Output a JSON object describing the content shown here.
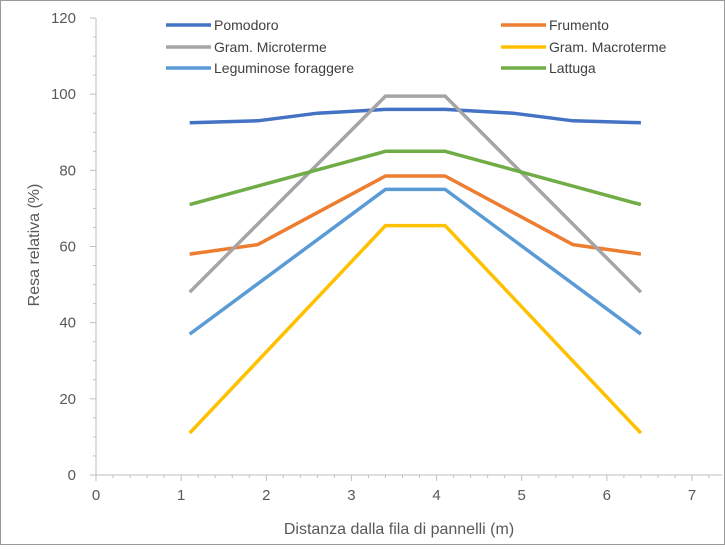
{
  "chart_data": {
    "type": "line",
    "title": "",
    "xlabel": "Distanza dalla fila di pannelli (m)",
    "ylabel": "Resa relativa (%)",
    "xlim": [
      0,
      7
    ],
    "ylim": [
      0,
      120
    ],
    "xticks": [
      0,
      1,
      2,
      3,
      4,
      5,
      6,
      7
    ],
    "yticks": [
      0,
      20,
      40,
      60,
      80,
      100,
      120
    ],
    "grid": false,
    "legend_position": "top",
    "series": [
      {
        "name": "Pomodoro",
        "color": "#4472c4",
        "x": [
          1.1,
          1.9,
          2.6,
          3.4,
          4.1,
          4.9,
          5.6,
          6.4
        ],
        "y": [
          92.5,
          93,
          95,
          96,
          96,
          95,
          93,
          92.5
        ]
      },
      {
        "name": "Frumento",
        "color": "#ed7d31",
        "x": [
          1.1,
          1.9,
          3.4,
          4.1,
          5.6,
          6.4
        ],
        "y": [
          58,
          60.5,
          78.5,
          78.5,
          60.5,
          58
        ]
      },
      {
        "name": "Gram. Microterme",
        "color": "#a5a5a5",
        "x": [
          1.1,
          3.4,
          4.1,
          6.4
        ],
        "y": [
          48,
          99.5,
          99.5,
          48
        ]
      },
      {
        "name": "Gram. Macroterme",
        "color": "#ffc000",
        "x": [
          1.1,
          3.4,
          4.1,
          6.4
        ],
        "y": [
          11,
          65.5,
          65.5,
          11
        ]
      },
      {
        "name": "Leguminose foraggere",
        "color": "#5b9bd5",
        "x": [
          1.1,
          3.4,
          4.1,
          6.4
        ],
        "y": [
          37,
          75,
          75,
          37
        ]
      },
      {
        "name": "Lattuga",
        "color": "#70ad47",
        "x": [
          1.1,
          3.4,
          4.1,
          6.4
        ],
        "y": [
          71,
          85,
          85,
          71
        ]
      }
    ]
  }
}
